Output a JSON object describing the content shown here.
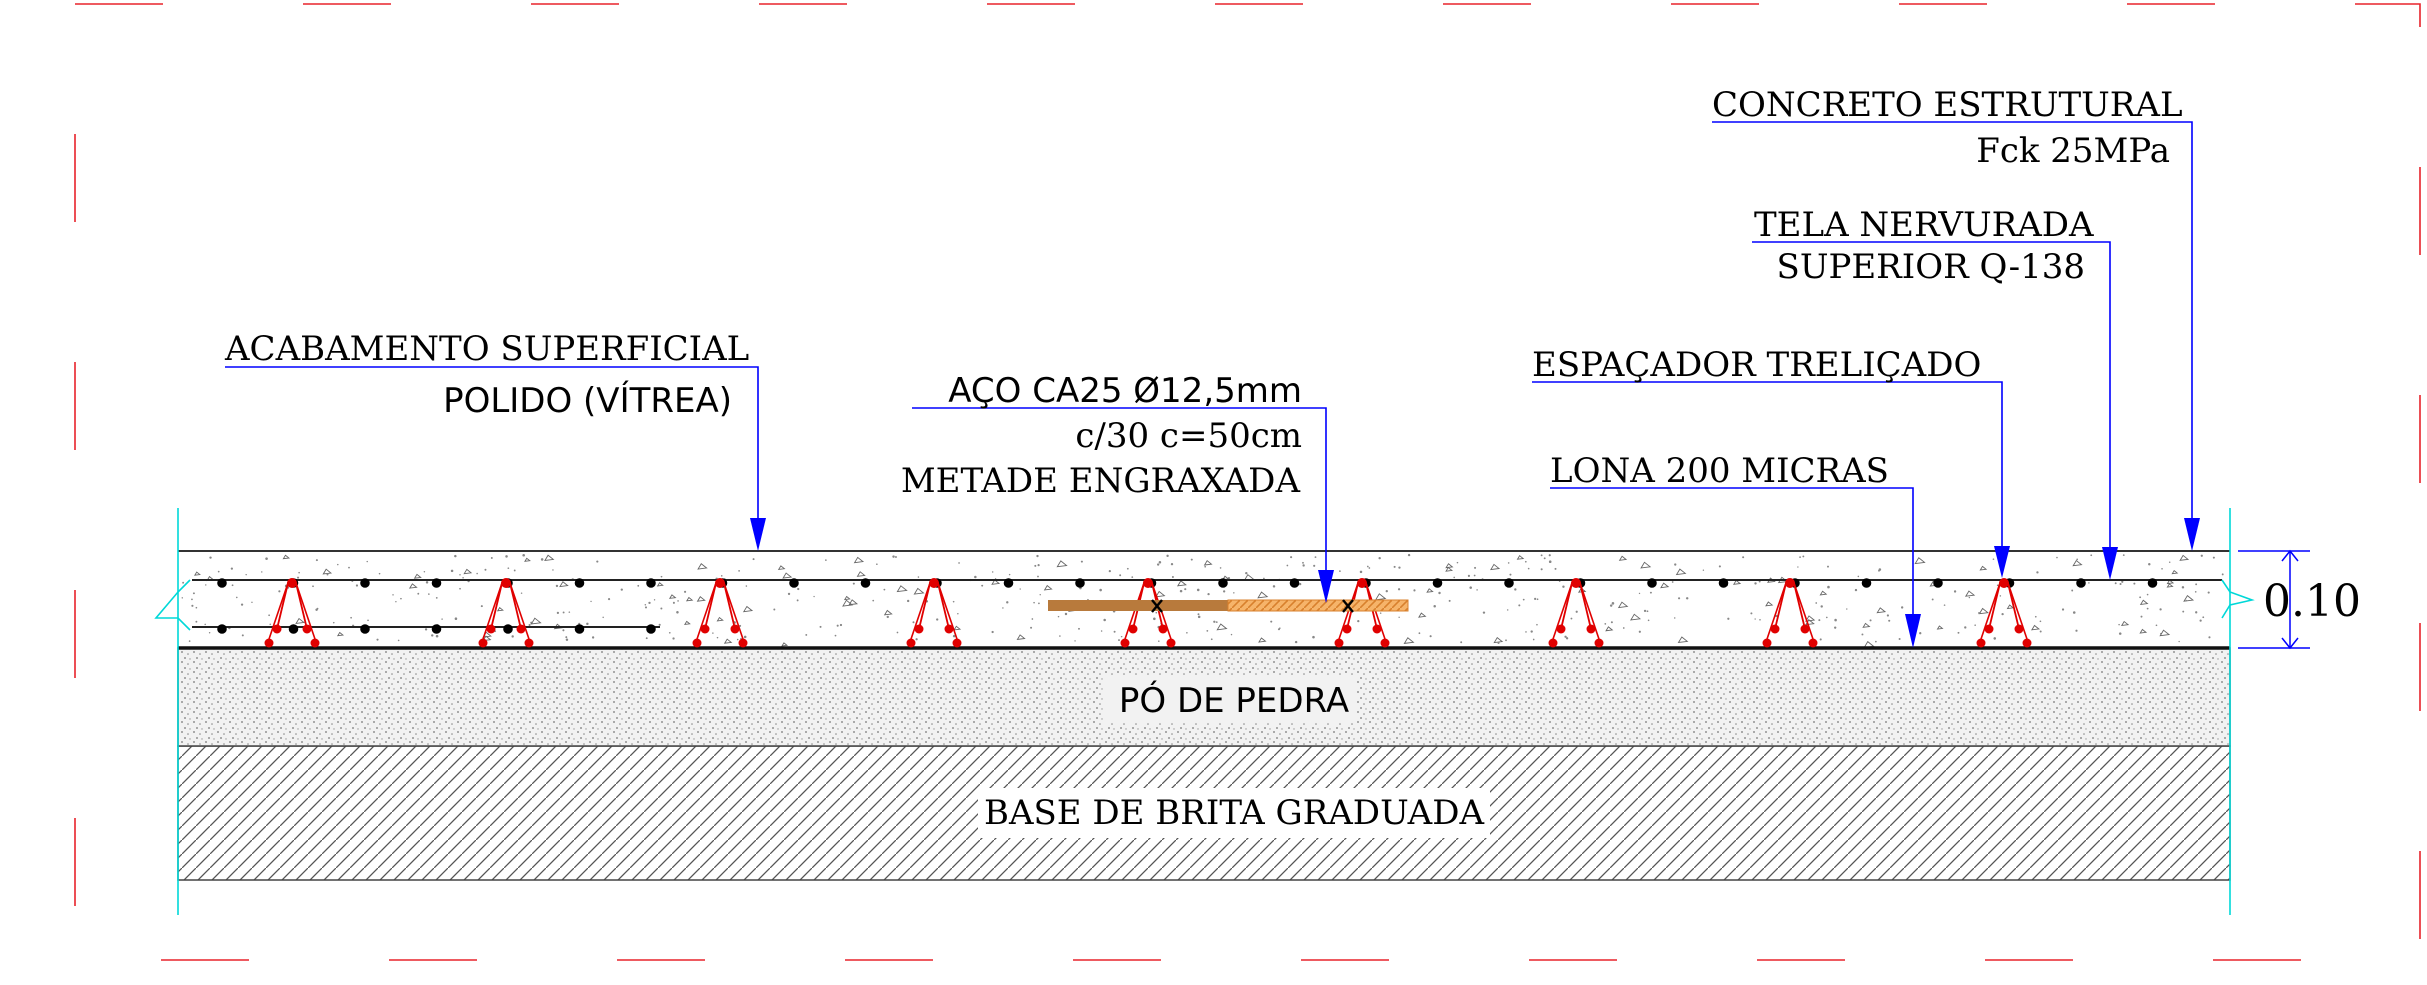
{
  "labels": {
    "concreto_line1": "CONCRETO ESTRUTURAL",
    "concreto_line2": "Fck 25MPa",
    "tela_line1": "TELA NERVURADA",
    "tela_line2": "SUPERIOR Q-138",
    "espacador": "ESPAÇADOR TRELIÇADO",
    "lona": "LONA 200 MICRAS",
    "aco_line1": "AÇO CA25 Ø12,5mm",
    "aco_line2": "c/30 c=50cm",
    "aco_line3": "METADE ENGRAXADA",
    "acabamento_line1": "ACABAMENTO SUPERFICIAL",
    "acabamento_line2": "POLIDO (VÍTREA)",
    "po_de_pedra": "PÓ DE PEDRA",
    "base_brita": "BASE DE BRITA GRADUADA"
  },
  "dimension": {
    "value": "0.10"
  },
  "colors": {
    "frame": "#e8232b",
    "leader": "#0000ff",
    "spacer": "#e00000",
    "dowel_solid": "#b87a3c",
    "dowel_greased": "#f2a55a",
    "edge": "#00d8d8",
    "line": "#333333"
  }
}
